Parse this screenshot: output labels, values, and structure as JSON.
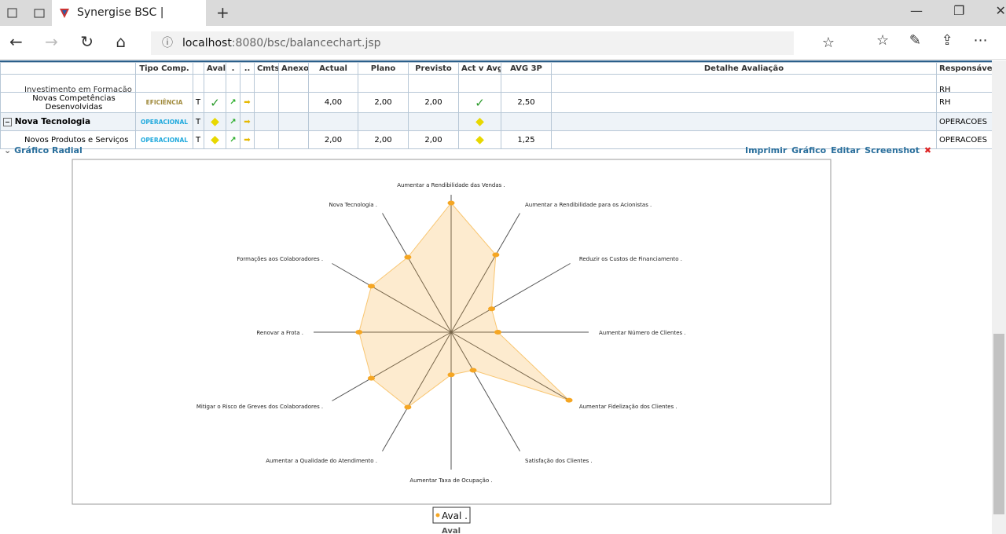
{
  "browser": {
    "tab_title": "Synergise BSC | Gráfico",
    "url_host": "localhost",
    "url_path": ":8080/bsc/balancechart.jsp"
  },
  "table": {
    "headers": [
      "Tipo Comp.",
      "Aval",
      ".",
      "..",
      "Cmts",
      "Anexo",
      "Actual",
      "Plano",
      "Previsto",
      "Act v Avg",
      "AVG 3P",
      "Detalhe Avaliação",
      "Responsável"
    ],
    "rows": [
      {
        "name": "Investimento em Formação",
        "responsavel": "RH"
      },
      {
        "name": "Novas Competências Desenvolvidas",
        "type": "EFICIÊNCIA",
        "t": "T",
        "actual": "4,00",
        "plano": "2,00",
        "previsto": "2,00",
        "avg3p": "2,50",
        "responsavel": "RH"
      },
      {
        "name": "Nova Tecnologia",
        "type": "OPERACIONAL",
        "t": "T",
        "responsavel": "OPERACOES"
      },
      {
        "name": "Novos Produtos e Serviços",
        "type": "OPERACIONAL",
        "t": "T",
        "actual": "2,00",
        "plano": "2,00",
        "previsto": "2,00",
        "avg3p": "1,25",
        "responsavel": "OPERACOES"
      }
    ]
  },
  "section": {
    "title": "Gráfico Radial",
    "links": [
      "Imprimir Gráfico",
      "Editar",
      "Screenshot"
    ]
  },
  "chart_data": {
    "type": "radar",
    "categories": [
      "Aumentar a Rendibilidade das Vendas .",
      "Aumentar a Rendibilidade para os Acionistas .",
      "Reduzir os Custos de Financiamento .",
      "Aumentar Número de Clientes .",
      "Aumentar Fidelização dos Clientes .",
      "Satisfação dos Clientes .",
      "Aumentar Taxa de Ocupação .",
      "Aumentar a Qualidade do Atendimento .",
      "Mitigar o Risco de Greves dos Colaboradores .",
      "Renovar a Frota .",
      "Formações aos Colaboradores .",
      "Nova Tecnologia ."
    ],
    "series": [
      {
        "name": "Aval .",
        "color": "#f5a623",
        "values": [
          94,
          65,
          34,
          34,
          99,
          32,
          31,
          63,
          67,
          67,
          67,
          63
        ]
      }
    ],
    "rlim": [
      0,
      100
    ],
    "axis_label": "Aval"
  }
}
